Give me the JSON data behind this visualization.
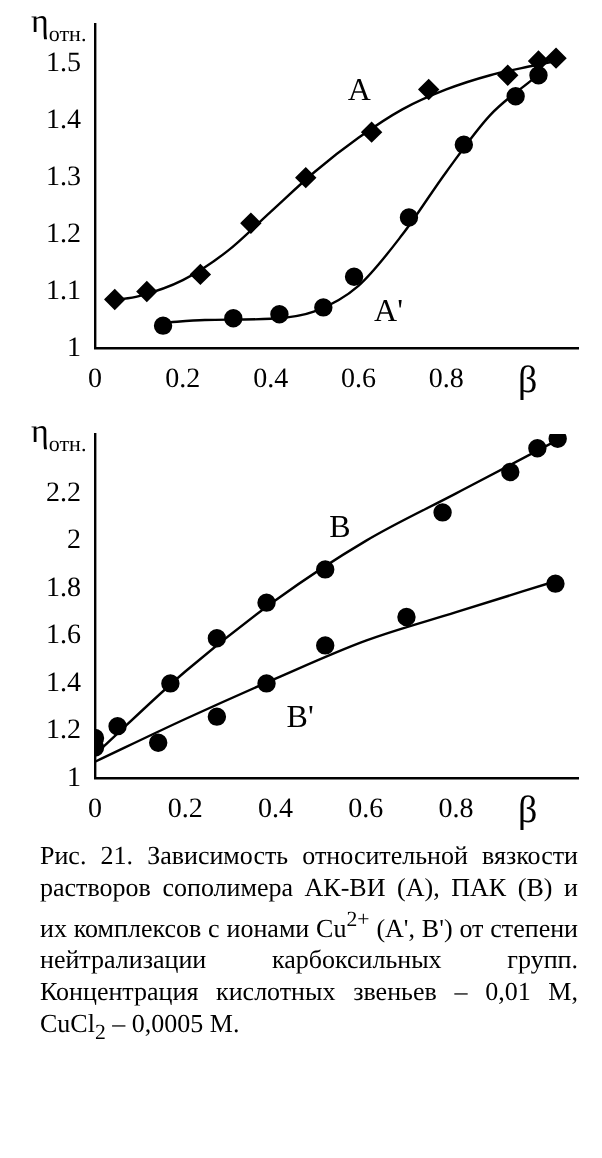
{
  "chart_data": [
    {
      "type": "scatter",
      "xlabel": "β",
      "ylabel": "η$_{отн.}$",
      "xlim": [
        0,
        1.1
      ],
      "xticks": [
        0,
        0.2,
        0.4,
        0.6,
        0.8
      ],
      "ylim": [
        1,
        1.57
      ],
      "yticks": [
        1,
        1.1,
        1.2,
        1.3,
        1.4,
        1.5
      ],
      "grid": false,
      "legend": false,
      "series": [
        {
          "name": "A",
          "color": "#000000",
          "marker": "diamond",
          "x": [
            0.045,
            0.118,
            0.24,
            0.355,
            0.48,
            0.63,
            0.76,
            0.94,
            1.01,
            1.05
          ],
          "values": [
            1.086,
            1.1,
            1.13,
            1.22,
            1.3,
            1.38,
            1.455,
            1.48,
            1.505,
            1.51
          ]
        },
        {
          "name": "A'",
          "color": "#000000",
          "marker": "circle",
          "x": [
            0.155,
            0.315,
            0.42,
            0.52,
            0.59,
            0.715,
            0.84,
            0.958,
            1.01
          ],
          "values": [
            1.04,
            1.053,
            1.06,
            1.072,
            1.126,
            1.23,
            1.358,
            1.443,
            1.48
          ]
        },
        {
          "type": "line",
          "color": "#000000",
          "marker": "none",
          "x": [
            0.045,
            0.1,
            0.2,
            0.3,
            0.4,
            0.5,
            0.6,
            0.7,
            0.8,
            0.9,
            1.0,
            1.05
          ],
          "values": [
            1.085,
            1.092,
            1.12,
            1.17,
            1.24,
            1.31,
            1.37,
            1.42,
            1.455,
            1.48,
            1.497,
            1.505
          ]
        },
        {
          "type": "line",
          "color": "#000000",
          "marker": "none",
          "x": [
            0.155,
            0.25,
            0.4,
            0.5,
            0.6,
            0.7,
            0.8,
            0.9,
            1.0
          ],
          "values": [
            1.045,
            1.05,
            1.052,
            1.065,
            1.11,
            1.2,
            1.31,
            1.41,
            1.475
          ]
        }
      ]
    },
    {
      "type": "scatter",
      "xlabel": "β",
      "ylabel": "η$_{отн.}$",
      "xlim": [
        0,
        1.07
      ],
      "xticks": [
        0,
        0.2,
        0.4,
        0.6,
        0.8
      ],
      "ylim": [
        1,
        2.45
      ],
      "yticks": [
        1,
        1.2,
        1.4,
        1.6,
        1.8,
        2,
        2.2
      ],
      "grid": false,
      "legend": false,
      "series": [
        {
          "name": "B",
          "color": "#000000",
          "marker": "circle",
          "x": [
            0,
            0.05,
            0.167,
            0.27,
            0.38,
            0.51,
            0.77,
            0.92,
            0.98,
            1.025
          ],
          "values": [
            1.17,
            1.22,
            1.4,
            1.59,
            1.74,
            1.88,
            2.12,
            2.29,
            2.39,
            2.43
          ]
        },
        {
          "name": "B'",
          "color": "#000000",
          "marker": "circle",
          "x": [
            0,
            0.14,
            0.27,
            0.38,
            0.51,
            0.69,
            1.02
          ],
          "values": [
            1.13,
            1.15,
            1.26,
            1.4,
            1.56,
            1.68,
            1.82
          ]
        },
        {
          "type": "line",
          "color": "#000000",
          "marker": "none",
          "x": [
            0,
            0.2,
            0.4,
            0.6,
            0.8,
            1.02
          ],
          "values": [
            1.1,
            1.45,
            1.75,
            2.0,
            2.2,
            2.42
          ]
        },
        {
          "type": "line",
          "color": "#000000",
          "marker": "none",
          "x": [
            0,
            0.2,
            0.4,
            0.6,
            0.8,
            1.02
          ],
          "values": [
            1.07,
            1.25,
            1.42,
            1.58,
            1.7,
            1.83
          ]
        }
      ],
      "annotations": [
        "Рис. 21. Зависимость относительной вязкости растворов сополимера АК-ВИ (А), ПАК (В) и их комплексов с ионами Cu$^{2+}$ (A', B') от степени нейтрализации карбоксильных групп. Концентрация кислотных звеньев – 0,01 М, CuCl$_{2}$ – 0,0005 М."
      ]
    }
  ]
}
